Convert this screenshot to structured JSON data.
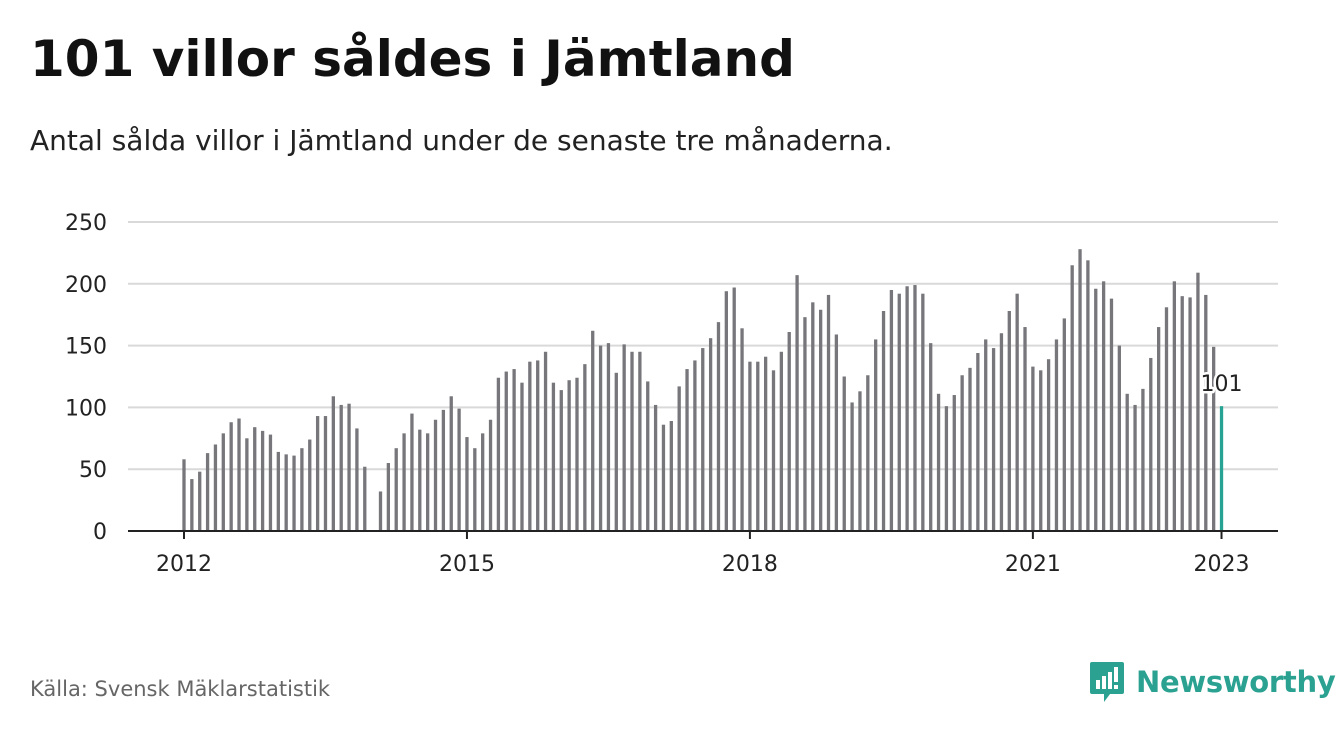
{
  "header": {
    "title": "101 villor såldes i Jämtland",
    "subtitle": "Antal sålda villor i Jämtland under de senaste tre månaderna."
  },
  "footer": {
    "source": "Källa: Svensk Mäklarstatistik",
    "brand": "Newsworthy"
  },
  "colors": {
    "bar": "#76767b",
    "highlight": "#27a393",
    "grid": "#d9d9d9",
    "brand": "#2aa191"
  },
  "chart_data": {
    "type": "bar",
    "title": "101 villor såldes i Jämtland",
    "subtitle": "Antal sålda villor i Jämtland under de senaste tre månaderna.",
    "xlabel": "",
    "ylabel": "",
    "ylim": [
      0,
      250
    ],
    "yticks": [
      0,
      50,
      100,
      150,
      200,
      250
    ],
    "xticks": [
      "2012",
      "2015",
      "2018",
      "2021",
      "2023"
    ],
    "grid": true,
    "start": "2012-01",
    "end": "2023-01",
    "highlight_label": "101",
    "series": [
      {
        "values": [
          58,
          42,
          48,
          63,
          70,
          79,
          88,
          91,
          75,
          84,
          81,
          78,
          64,
          62,
          61,
          67,
          74,
          93,
          93,
          109,
          102,
          103,
          83,
          52,
          null,
          32,
          55,
          67,
          79,
          95,
          82,
          79,
          90,
          98,
          109,
          99,
          76,
          67,
          79,
          90,
          124,
          129,
          131,
          120,
          137,
          138,
          145,
          120,
          114,
          122,
          124,
          135,
          162,
          150,
          152,
          128,
          151,
          145,
          145,
          121,
          102,
          86,
          89,
          117,
          131,
          138,
          148,
          156,
          169,
          194,
          197,
          164,
          137,
          137,
          141,
          130,
          145,
          161,
          207,
          173,
          185,
          179,
          191,
          159,
          125,
          104,
          113,
          126,
          155,
          178,
          195,
          192,
          198,
          199,
          192,
          152,
          111,
          101,
          110,
          126,
          132,
          144,
          155,
          148,
          160,
          178,
          192,
          165,
          133,
          130,
          139,
          155,
          172,
          215,
          228,
          219,
          196,
          202,
          188,
          150,
          111,
          102,
          115,
          140,
          165,
          181,
          202,
          190,
          189,
          209,
          191,
          149,
          101
        ]
      }
    ]
  }
}
